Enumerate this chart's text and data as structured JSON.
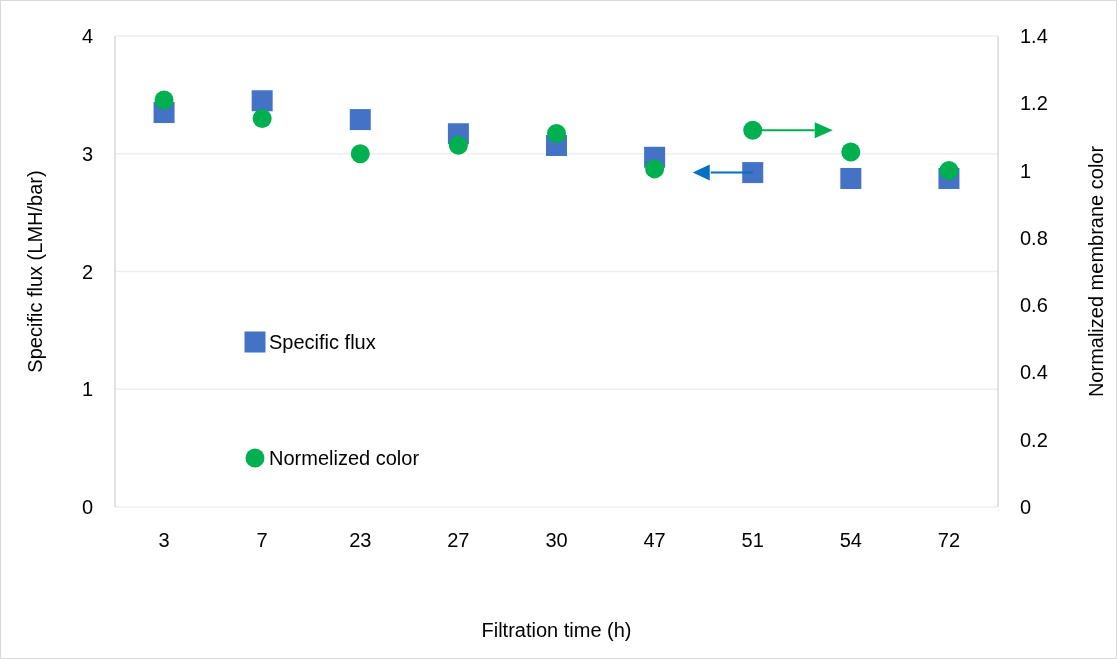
{
  "chart_data": {
    "type": "scatter",
    "xlabel": "Filtration time (h)",
    "ylabel": "Specific flux (LMH/bar)",
    "y2label": "Normalized membrane color",
    "categories": [
      "3",
      "7",
      "23",
      "27",
      "30",
      "47",
      "51",
      "54",
      "72"
    ],
    "series": [
      {
        "name": "Specific flux",
        "color": "#4472c4",
        "marker": "square",
        "values": [
          3.35,
          3.45,
          3.29,
          3.17,
          3.07,
          2.97,
          2.84,
          2.79,
          2.79
        ]
      },
      {
        "name": "Normelized color",
        "color": "#00b050",
        "marker": "circle",
        "axis": "y2",
        "values": [
          1.21,
          1.155,
          1.05,
          1.075,
          1.11,
          1.005,
          1.12,
          1.055,
          1.0
        ]
      }
    ],
    "ylim": [
      0,
      4
    ],
    "yticks": [
      0,
      1,
      2,
      3,
      4
    ],
    "y2lim": [
      0,
      1.4
    ],
    "y2ticks": [
      0,
      {
        "value": 0.2,
        "label": "0.2"
      },
      {
        "value": 0.4,
        "label": "0.4"
      },
      {
        "value": 0.6,
        "label": "0.6"
      },
      {
        "value": 0.8,
        "label": "0.8"
      },
      1,
      {
        "value": 1.2,
        "label": "1.2"
      },
      {
        "value": 1.4,
        "label": "1.4"
      }
    ],
    "grid": "y",
    "legend": "left"
  }
}
